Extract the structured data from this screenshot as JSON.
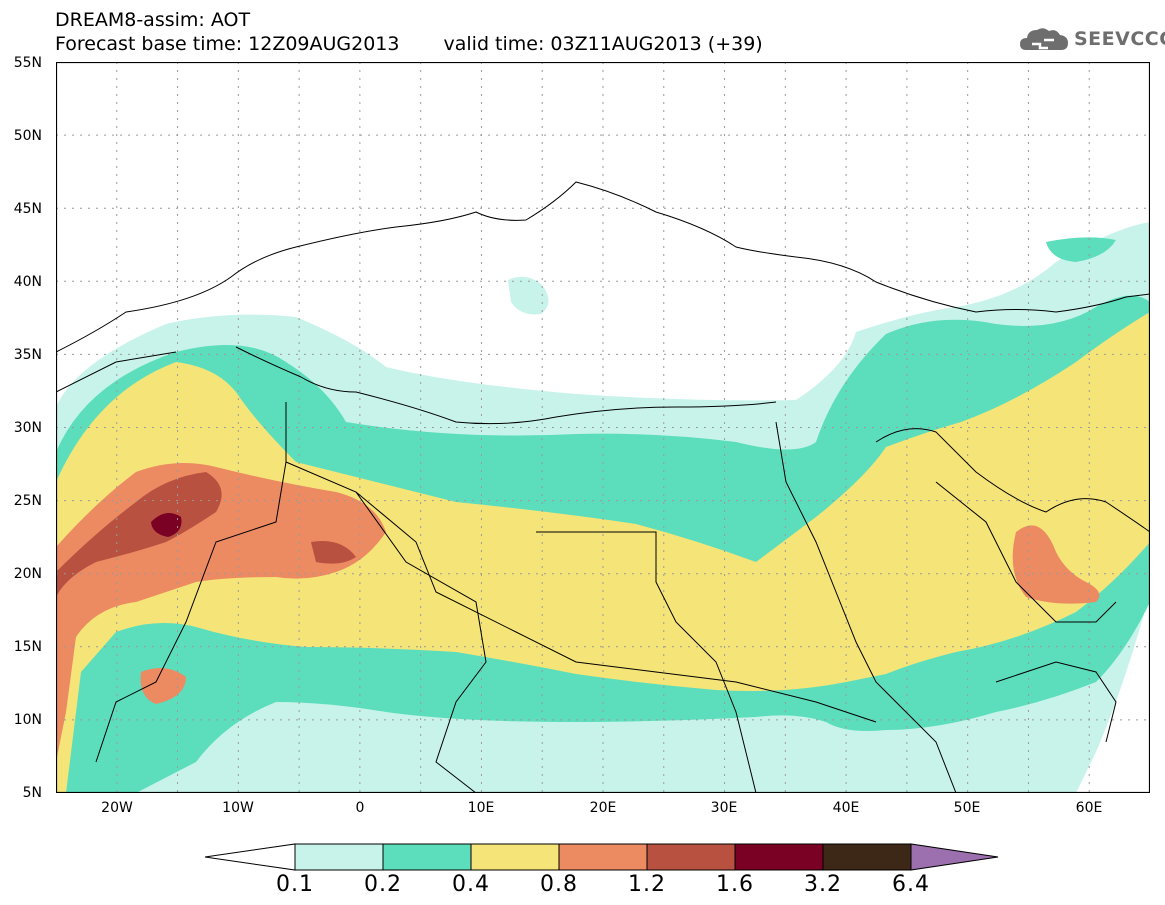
{
  "header": {
    "line1": "DREAM8-assim: AOT",
    "base_time": "Forecast base time: 12Z09AUG2013",
    "valid_time": "valid time: 03Z11AUG2013 (+39)"
  },
  "logo": {
    "text": "SEEVCCC",
    "icon": "cloud-icon"
  },
  "map": {
    "extent": {
      "lon": [
        -25,
        65
      ],
      "lat": [
        5,
        55
      ]
    },
    "projection": "equirectangular",
    "gridlines": "dotted",
    "background": "#ffffff"
  },
  "axes": {
    "lat_labels": [
      "55N",
      "50N",
      "45N",
      "40N",
      "35N",
      "30N",
      "25N",
      "20N",
      "15N",
      "10N",
      "5N"
    ],
    "lon_labels": [
      "20W",
      "10W",
      "0",
      "10E",
      "20E",
      "30E",
      "40E",
      "50E",
      "60E"
    ]
  },
  "legend": {
    "levels": [
      "0.1",
      "0.2",
      "0.4",
      "0.8",
      "1.2",
      "1.6",
      "3.2",
      "6.4"
    ],
    "colors": [
      "#c8f3ea",
      "#5cdebc",
      "#f5e477",
      "#ec8a62",
      "#b85140",
      "#7a0024",
      "#3d2818",
      "#9c6fae"
    ],
    "below_color": "#ffffff"
  },
  "colors": {
    "c1": "#c8f3ea",
    "c2": "#5cdebc",
    "c3": "#f5e477",
    "c4": "#ec8a62",
    "c5": "#b85140",
    "c6": "#7a0024"
  }
}
